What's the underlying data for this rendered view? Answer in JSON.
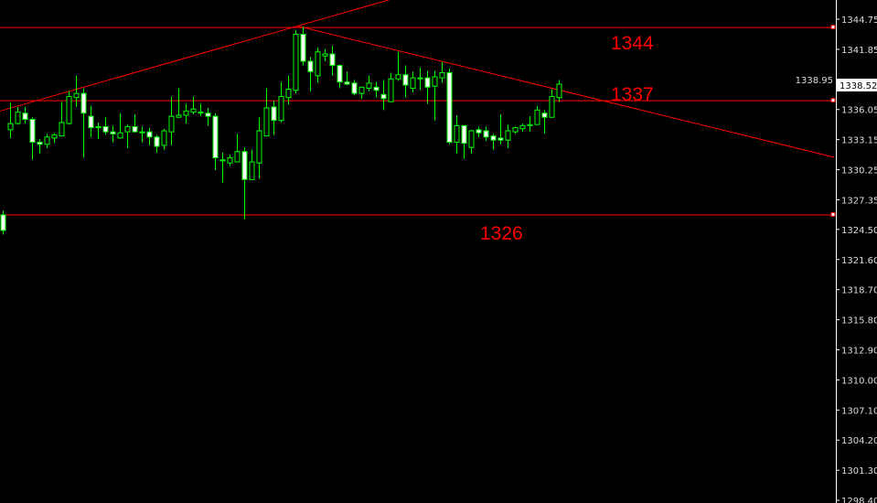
{
  "chart_data": {
    "type": "candlestick",
    "title": "",
    "background": "#000000",
    "colors": {
      "bull": "#00ff00",
      "bear_fill": "#ffffff",
      "wick": "#00ff00",
      "lines": "#ff0000",
      "axis": "#ffffff",
      "tick_text": "#dcdcdc"
    },
    "y_axis": {
      "position": "right",
      "range": [
        1298.4,
        1346.6
      ],
      "tick_labels": [
        "1344.75",
        "1341.85",
        "1338.95",
        "1336.05",
        "1333.15",
        "1330.25",
        "1327.35",
        "1324.50",
        "1321.60",
        "1318.70",
        "1315.80",
        "1312.90",
        "1310.00",
        "1307.10",
        "1304.20",
        "1301.30",
        "1298.40"
      ]
    },
    "current_price": "1338.52",
    "candles": [
      [
        1325.9,
        1326.3,
        1324.0,
        1324.4
      ],
      [
        1334.1,
        1336.7,
        1333.3,
        1334.7
      ],
      [
        1334.7,
        1336.3,
        1334.6,
        1335.8
      ],
      [
        1335.7,
        1336.3,
        1334.7,
        1335.1
      ],
      [
        1335.1,
        1335.3,
        1331.2,
        1332.9
      ],
      [
        1332.9,
        1333.2,
        1331.8,
        1332.7
      ],
      [
        1332.7,
        1333.7,
        1332.3,
        1333.4
      ],
      [
        1333.3,
        1333.8,
        1332.8,
        1333.6
      ],
      [
        1333.5,
        1336.8,
        1333.5,
        1334.8
      ],
      [
        1334.7,
        1337.8,
        1334.6,
        1337.3
      ],
      [
        1337.2,
        1339.3,
        1336.3,
        1337.6
      ],
      [
        1337.6,
        1338.1,
        1331.4,
        1335.7
      ],
      [
        1335.4,
        1336.4,
        1333.4,
        1334.3
      ],
      [
        1334.3,
        1334.8,
        1333.2,
        1334.4
      ],
      [
        1334.4,
        1335.3,
        1333.6,
        1333.9
      ],
      [
        1333.9,
        1334.5,
        1332.9,
        1333.7
      ],
      [
        1333.3,
        1335.7,
        1333.3,
        1333.8
      ],
      [
        1333.9,
        1334.6,
        1332.3,
        1334.4
      ],
      [
        1334.4,
        1335.6,
        1333.9,
        1333.9
      ],
      [
        1333.8,
        1334.4,
        1332.9,
        1333.9
      ],
      [
        1333.9,
        1334.3,
        1332.6,
        1333.4
      ],
      [
        1333.4,
        1333.6,
        1331.9,
        1332.5
      ],
      [
        1332.6,
        1334.2,
        1332.2,
        1334.0
      ],
      [
        1333.9,
        1337.3,
        1332.6,
        1335.4
      ],
      [
        1335.3,
        1338.1,
        1335.3,
        1335.5
      ],
      [
        1335.5,
        1336.6,
        1334.7,
        1335.9
      ],
      [
        1335.8,
        1337.3,
        1335.6,
        1336.1
      ],
      [
        1335.7,
        1336.6,
        1335.4,
        1335.8
      ],
      [
        1335.7,
        1336.2,
        1334.5,
        1335.4
      ],
      [
        1335.4,
        1335.7,
        1330.2,
        1331.4
      ],
      [
        1331.1,
        1331.9,
        1329.0,
        1331.2
      ],
      [
        1330.9,
        1331.7,
        1330.6,
        1331.4
      ],
      [
        1331.0,
        1333.7,
        1331.0,
        1332.0
      ],
      [
        1332.0,
        1332.4,
        1325.5,
        1329.3
      ],
      [
        1329.3,
        1332.2,
        1329.3,
        1331.0
      ],
      [
        1330.9,
        1335.3,
        1329.4,
        1334.0
      ],
      [
        1333.5,
        1338.1,
        1333.5,
        1336.2
      ],
      [
        1336.3,
        1336.9,
        1333.6,
        1335.0
      ],
      [
        1335.0,
        1338.7,
        1334.8,
        1337.3
      ],
      [
        1337.2,
        1339.3,
        1336.5,
        1338.0
      ],
      [
        1337.9,
        1343.7,
        1337.6,
        1343.3
      ],
      [
        1343.3,
        1344.0,
        1340.3,
        1340.7
      ],
      [
        1340.7,
        1341.1,
        1337.8,
        1339.7
      ],
      [
        1339.3,
        1342.0,
        1338.6,
        1341.6
      ],
      [
        1341.2,
        1341.9,
        1340.7,
        1341.4
      ],
      [
        1341.4,
        1342.2,
        1339.3,
        1340.3
      ],
      [
        1340.3,
        1340.4,
        1338.1,
        1338.7
      ],
      [
        1338.7,
        1339.7,
        1338.4,
        1338.5
      ],
      [
        1338.6,
        1338.9,
        1337.4,
        1337.6
      ],
      [
        1337.6,
        1338.2,
        1337.1,
        1338.2
      ],
      [
        1338.1,
        1339.3,
        1337.8,
        1338.6
      ],
      [
        1338.2,
        1338.7,
        1337.2,
        1337.9
      ],
      [
        1337.5,
        1338.9,
        1336.0,
        1337.1
      ],
      [
        1336.8,
        1339.6,
        1336.8,
        1339.0
      ],
      [
        1339.0,
        1341.6,
        1338.8,
        1339.4
      ],
      [
        1339.4,
        1340.3,
        1337.2,
        1338.4
      ],
      [
        1338.1,
        1339.7,
        1337.7,
        1339.1
      ],
      [
        1339.0,
        1340.1,
        1337.9,
        1339.1
      ],
      [
        1339.1,
        1339.8,
        1336.6,
        1338.2
      ],
      [
        1338.3,
        1339.8,
        1335.0,
        1339.2
      ],
      [
        1339.1,
        1340.6,
        1338.6,
        1339.6
      ],
      [
        1339.6,
        1340.0,
        1332.7,
        1332.9
      ],
      [
        1332.9,
        1335.5,
        1331.8,
        1334.5
      ],
      [
        1334.5,
        1334.5,
        1331.3,
        1332.8
      ],
      [
        1332.4,
        1334.1,
        1331.8,
        1334.0
      ],
      [
        1334.1,
        1334.4,
        1333.4,
        1333.8
      ],
      [
        1334.0,
        1334.4,
        1333.0,
        1333.4
      ],
      [
        1333.5,
        1333.7,
        1332.2,
        1333.1
      ],
      [
        1333.3,
        1335.6,
        1332.7,
        1333.1
      ],
      [
        1333.1,
        1334.6,
        1332.3,
        1334.0
      ],
      [
        1333.9,
        1334.4,
        1333.7,
        1334.3
      ],
      [
        1334.2,
        1334.7,
        1333.9,
        1334.5
      ],
      [
        1334.5,
        1335.4,
        1333.9,
        1334.6
      ],
      [
        1334.6,
        1336.4,
        1334.6,
        1336.0
      ],
      [
        1335.7,
        1336.0,
        1333.7,
        1335.3
      ],
      [
        1335.3,
        1338.0,
        1335.3,
        1337.3
      ],
      [
        1337.2,
        1338.9,
        1336.8,
        1338.5
      ]
    ],
    "horizontal_levels": [
      {
        "price": 1343.95,
        "label": "1344"
      },
      {
        "price": 1336.9,
        "label": "1337"
      },
      {
        "price": 1325.9,
        "label": "1326"
      }
    ],
    "trendlines": [
      {
        "from": {
          "bar": -0.4,
          "price": 1335.9
        },
        "to": {
          "bar": 52.7,
          "price": 1346.6
        }
      },
      {
        "from": {
          "bar": 40.2,
          "price": 1344.1
        },
        "to": {
          "bar": 113.6,
          "price": 1331.45
        }
      }
    ]
  }
}
